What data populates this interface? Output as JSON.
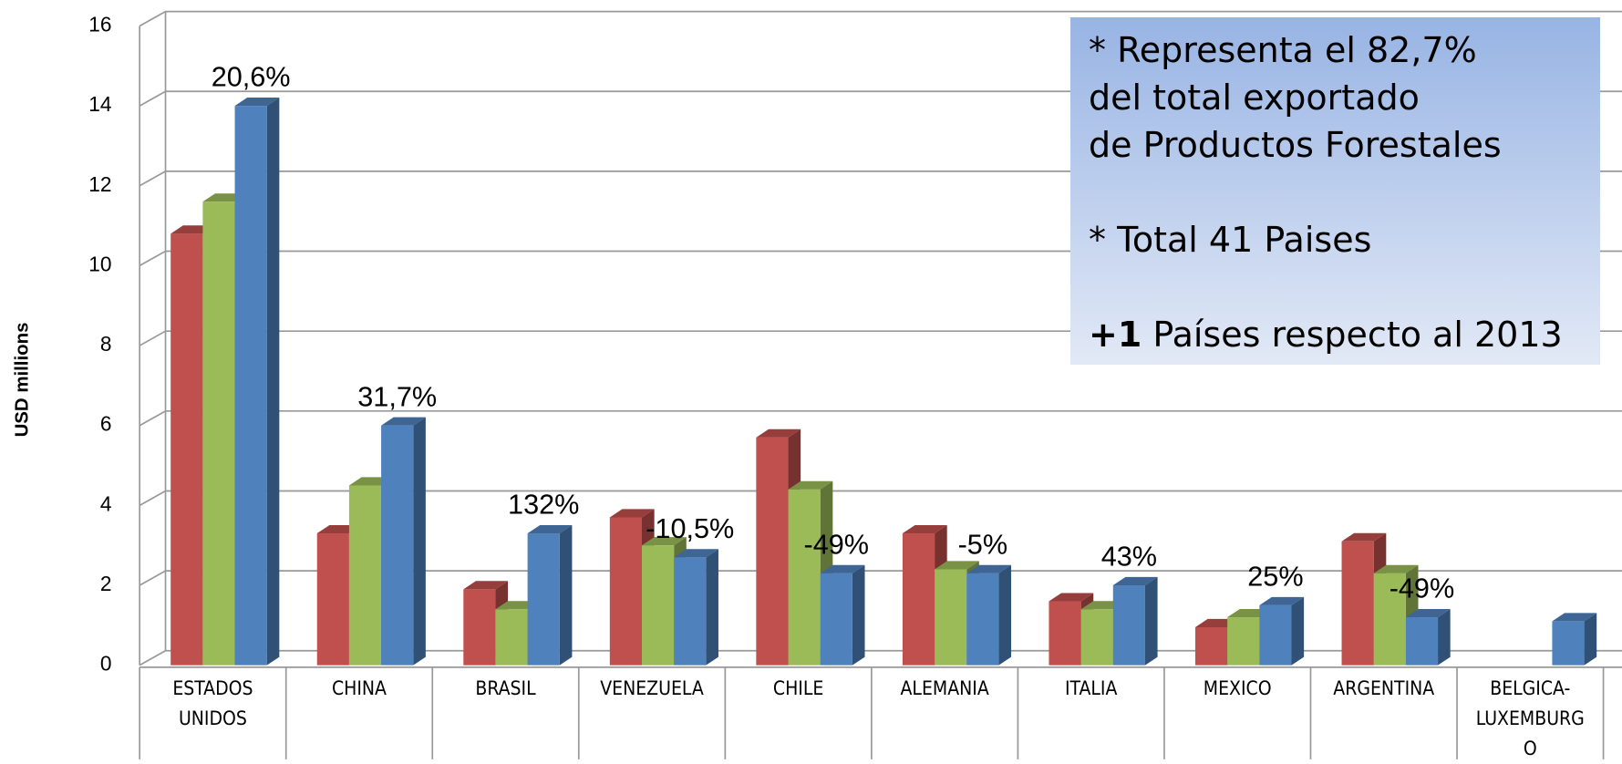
{
  "chart_data": {
    "type": "bar3d",
    "y_label": "USD millions",
    "categories": [
      "ESTADOS UNIDOS",
      "CHINA",
      "BRASIL",
      "VENEZUELA",
      "CHILE",
      "ALEMANIA",
      "ITALIA",
      "MEXICO",
      "ARGENTINA",
      "BELGICA-LUXEMBURGO"
    ],
    "series": [
      {
        "color": "#c0504d",
        "values": [
          10.8,
          3.3,
          1.9,
          3.7,
          5.7,
          3.3,
          1.6,
          0.95,
          3.1,
          null
        ]
      },
      {
        "color": "#9bbb59",
        "values": [
          11.6,
          4.5,
          1.4,
          3.0,
          4.4,
          2.4,
          1.4,
          1.2,
          2.3,
          null
        ]
      },
      {
        "color": "#4f81bd",
        "values": [
          14.0,
          6.0,
          3.3,
          2.7,
          2.3,
          2.3,
          2.0,
          1.5,
          1.2,
          1.1
        ]
      }
    ],
    "growth_labels": [
      "20,6%",
      "31,7%",
      "132%",
      "-10,5%",
      "-49%",
      "-5%",
      "43%",
      "25%",
      "-49%",
      null
    ],
    "ylim": [
      0,
      16
    ],
    "yticks": [
      0,
      2,
      4,
      6,
      8,
      10,
      12,
      14,
      16
    ],
    "grid": true,
    "note": {
      "lines": [
        "* Representa el 82,7%",
        "del total exportado",
        "de Productos Forestales",
        "",
        "* Total 41 Paises",
        ""
      ],
      "bold": "+1",
      "rest": " Países respecto al 2013"
    }
  }
}
